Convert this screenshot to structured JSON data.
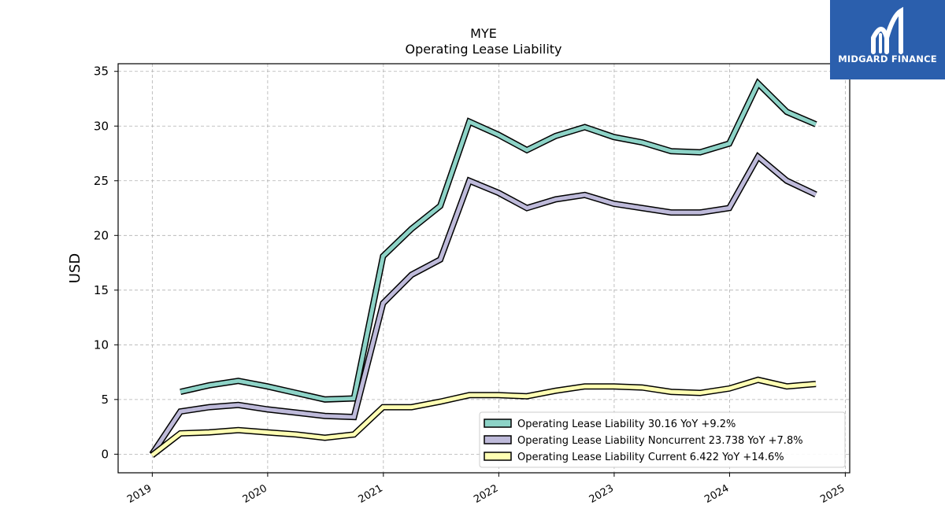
{
  "brand": {
    "name": "MIDGARD FINANCE",
    "color": "#2b5fad"
  },
  "chart_data": {
    "type": "line",
    "title": "MYE",
    "subtitle": "Operating Lease Liability",
    "ylabel": "USD",
    "xlabel": "",
    "ylim": [
      -1.7,
      35.7
    ],
    "xlim": [
      "2018-09-15",
      "2025-01-15"
    ],
    "yticks": [
      0,
      5,
      10,
      15,
      20,
      25,
      30,
      35
    ],
    "xticks": [
      "2019",
      "2020",
      "2021",
      "2022",
      "2023",
      "2024",
      "2025"
    ],
    "grid": true,
    "legend_position": "bottom-right",
    "series": [
      {
        "name": "Operating Lease Liability",
        "legend_label": "Operating Lease Liability  30.16 YoY +9.2%",
        "color": "#8dd3c7",
        "points": [
          [
            "2019-03-31",
            5.7
          ],
          [
            "2019-06-30",
            6.3
          ],
          [
            "2019-09-30",
            6.7
          ],
          [
            "2019-12-31",
            6.2
          ],
          [
            "2020-03-31",
            5.6
          ],
          [
            "2020-06-30",
            5.0
          ],
          [
            "2020-09-30",
            5.1
          ],
          [
            "2020-12-31",
            18.1
          ],
          [
            "2021-03-31",
            20.6
          ],
          [
            "2021-06-30",
            22.7
          ],
          [
            "2021-09-30",
            30.4
          ],
          [
            "2021-12-31",
            29.2
          ],
          [
            "2022-03-31",
            27.8
          ],
          [
            "2022-06-30",
            29.1
          ],
          [
            "2022-09-30",
            29.9
          ],
          [
            "2022-12-31",
            29.0
          ],
          [
            "2023-03-31",
            28.5
          ],
          [
            "2023-06-30",
            27.7
          ],
          [
            "2023-09-30",
            27.6
          ],
          [
            "2023-12-31",
            28.4
          ],
          [
            "2024-03-31",
            33.9
          ],
          [
            "2024-06-30",
            31.3
          ],
          [
            "2024-09-30",
            30.16
          ]
        ]
      },
      {
        "name": "Operating Lease Liability Noncurrent",
        "legend_label": "Operating Lease Liability Noncurrent  23.738 YoY +7.8%",
        "color": "#bebada",
        "points": [
          [
            "2018-12-31",
            0.0
          ],
          [
            "2019-03-31",
            3.9
          ],
          [
            "2019-06-30",
            4.3
          ],
          [
            "2019-09-30",
            4.5
          ],
          [
            "2019-12-31",
            4.1
          ],
          [
            "2020-03-31",
            3.8
          ],
          [
            "2020-06-30",
            3.5
          ],
          [
            "2020-09-30",
            3.4
          ],
          [
            "2020-12-31",
            13.8
          ],
          [
            "2021-03-31",
            16.4
          ],
          [
            "2021-06-30",
            17.8
          ],
          [
            "2021-09-30",
            25.0
          ],
          [
            "2021-12-31",
            23.9
          ],
          [
            "2022-03-31",
            22.5
          ],
          [
            "2022-06-30",
            23.3
          ],
          [
            "2022-09-30",
            23.7
          ],
          [
            "2022-12-31",
            22.9
          ],
          [
            "2023-03-31",
            22.5
          ],
          [
            "2023-06-30",
            22.1
          ],
          [
            "2023-09-30",
            22.1
          ],
          [
            "2023-12-31",
            22.5
          ],
          [
            "2024-03-31",
            27.2
          ],
          [
            "2024-06-30",
            25.0
          ],
          [
            "2024-09-30",
            23.738
          ]
        ]
      },
      {
        "name": "Operating Lease Liability Current",
        "legend_label": "Operating Lease Liability Current  6.422 YoY +14.6%",
        "color": "#ffffb3",
        "points": [
          [
            "2018-12-31",
            -0.1
          ],
          [
            "2019-03-31",
            1.9
          ],
          [
            "2019-06-30",
            2.0
          ],
          [
            "2019-09-30",
            2.2
          ],
          [
            "2019-12-31",
            2.0
          ],
          [
            "2020-03-31",
            1.8
          ],
          [
            "2020-06-30",
            1.5
          ],
          [
            "2020-09-30",
            1.8
          ],
          [
            "2020-12-31",
            4.3
          ],
          [
            "2021-03-31",
            4.3
          ],
          [
            "2021-06-30",
            4.8
          ],
          [
            "2021-09-30",
            5.4
          ],
          [
            "2021-12-31",
            5.4
          ],
          [
            "2022-03-31",
            5.3
          ],
          [
            "2022-06-30",
            5.8
          ],
          [
            "2022-09-30",
            6.2
          ],
          [
            "2022-12-31",
            6.2
          ],
          [
            "2023-03-31",
            6.1
          ],
          [
            "2023-06-30",
            5.7
          ],
          [
            "2023-09-30",
            5.6
          ],
          [
            "2023-12-31",
            6.0
          ],
          [
            "2024-03-31",
            6.8
          ],
          [
            "2024-06-30",
            6.2
          ],
          [
            "2024-09-30",
            6.422
          ]
        ]
      }
    ]
  }
}
